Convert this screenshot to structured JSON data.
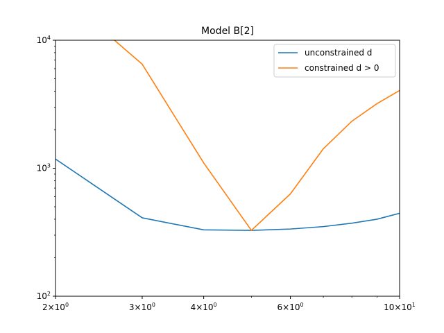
{
  "chart_data": {
    "type": "line",
    "title": "Model B[2]",
    "xlabel": "",
    "ylabel": "",
    "xscale": "log",
    "yscale": "log",
    "xlim": [
      2,
      10
    ],
    "ylim": [
      100,
      10000
    ],
    "grid": false,
    "legend_position": "top-right",
    "x_ticks": [
      {
        "value": 2,
        "base": "2",
        "sup": "0"
      },
      {
        "value": 3,
        "base": "3",
        "sup": "0"
      },
      {
        "value": 4,
        "base": "4",
        "sup": "0"
      },
      {
        "value": 6,
        "base": "6",
        "sup": "0"
      },
      {
        "value": 10,
        "base": "10",
        "sup": "1"
      }
    ],
    "y_ticks": [
      {
        "value": 100,
        "base": "10",
        "sup": "2"
      },
      {
        "value": 1000,
        "base": "10",
        "sup": "3"
      },
      {
        "value": 10000,
        "base": "10",
        "sup": "4"
      }
    ],
    "series": [
      {
        "name": "unconstrained d",
        "color": "#1f77b4",
        "x": [
          2,
          3,
          4,
          5,
          6,
          7,
          8,
          9,
          10
        ],
        "y": [
          1180,
          410,
          330,
          327,
          335,
          350,
          372,
          400,
          445
        ]
      },
      {
        "name": "constrained d > 0",
        "color": "#ff7f0e",
        "x": [
          2,
          3,
          4,
          5,
          6,
          7,
          8,
          9,
          10
        ],
        "y": [
          25000,
          6500,
          1100,
          327,
          630,
          1420,
          2330,
          3200,
          4050
        ]
      }
    ]
  }
}
